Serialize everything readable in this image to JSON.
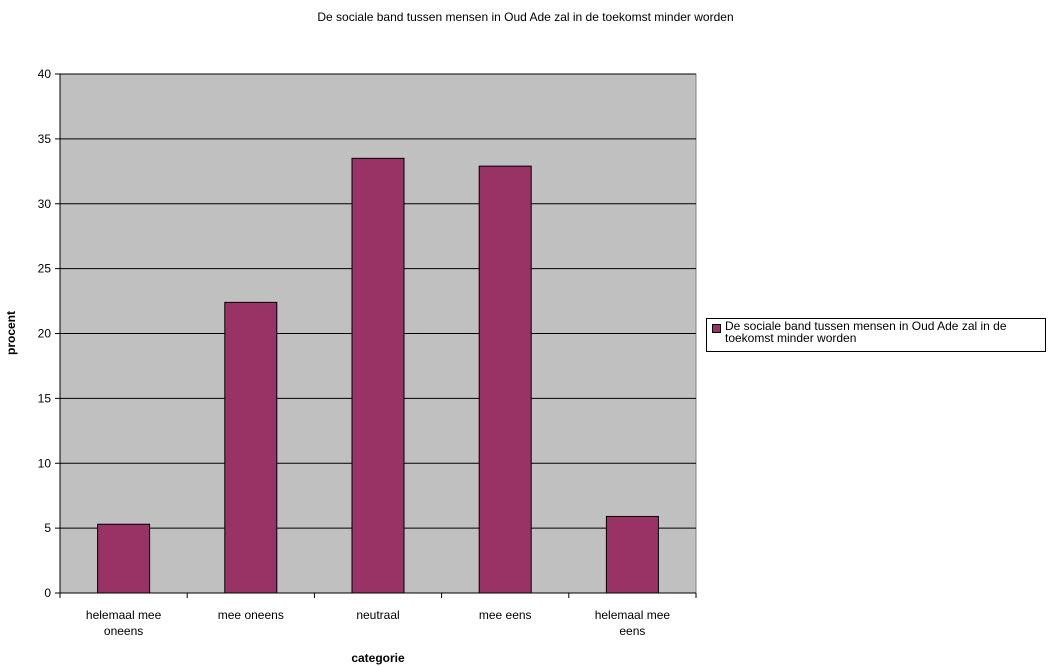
{
  "chart_data": {
    "type": "bar",
    "title": "De sociale band tussen mensen in Oud Ade zal in de toekomst minder worden",
    "xlabel": "categorie",
    "ylabel": "procent",
    "categories": [
      "helemaal mee oneens",
      "mee oneens",
      "neutraal",
      "mee eens",
      "helemaal mee eens"
    ],
    "series": [
      {
        "name": "De sociale band tussen mensen in Oud Ade zal in de toekomst minder worden",
        "values": [
          5.3,
          22.4,
          33.5,
          32.9,
          5.9
        ],
        "color": "#993366"
      }
    ],
    "ylim": [
      0,
      40
    ],
    "yticks": [
      0,
      5,
      10,
      15,
      20,
      25,
      30,
      35,
      40
    ],
    "grid": true,
    "plot_background": "#c0c0c0",
    "legend_position": "right"
  }
}
